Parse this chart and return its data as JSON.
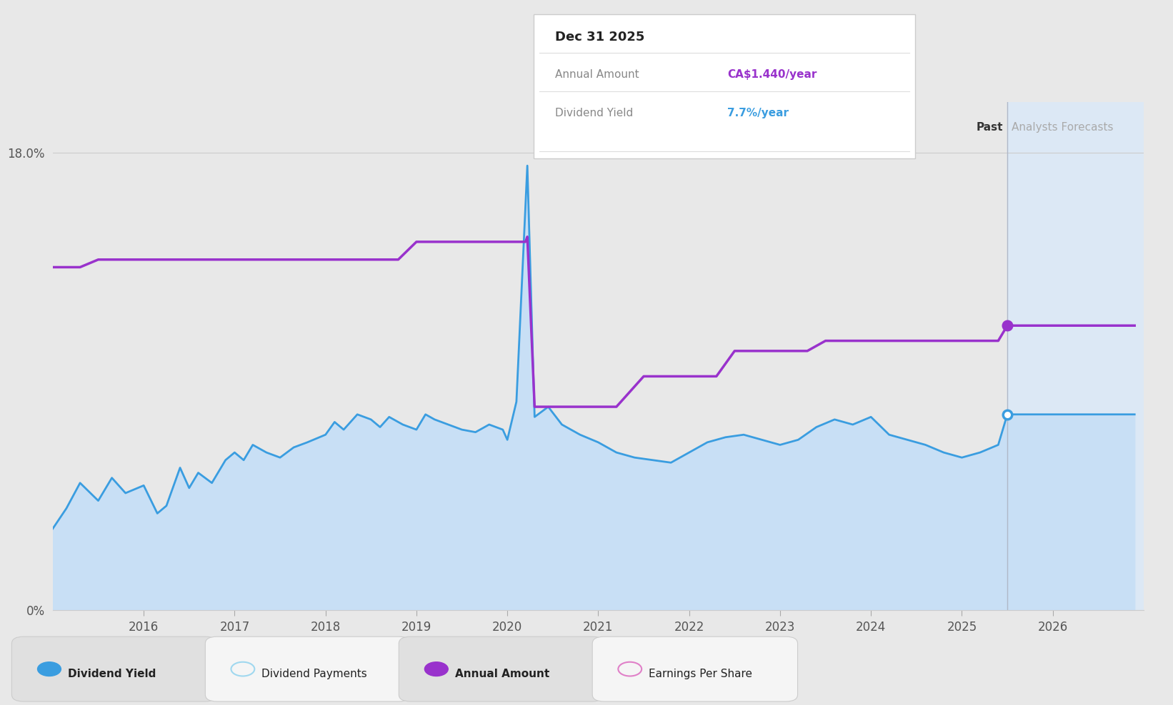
{
  "bg_color": "#e8e8e8",
  "plot_bg_color": "#e8e8e8",
  "forecast_bg_color": "#dce8f5",
  "area_fill_color": "#c8dff5",
  "dividend_yield_color": "#3a9de0",
  "annual_amount_color": "#9932cc",
  "dividend_payments_color": "#a0d8ef",
  "earnings_per_share_color": "#e0a0d8",
  "ylim": [
    0,
    20.0
  ],
  "xmin": 2015.0,
  "xmax": 2027.0,
  "forecast_start": 2025.5,
  "tooltip_date": "Dec 31 2025",
  "tooltip_annual_amount_label": "Annual Amount",
  "tooltip_annual_amount_value": "CA$1.440/year",
  "tooltip_yield_label": "Dividend Yield",
  "tooltip_yield_value": "7.7%/year",
  "legend_items": [
    {
      "label": "Dividend Yield",
      "color": "#3a9de0",
      "filled": true,
      "bold": true
    },
    {
      "label": "Dividend Payments",
      "color": "#a0d8ef",
      "filled": false,
      "bold": false
    },
    {
      "label": "Annual Amount",
      "color": "#9932cc",
      "filled": true,
      "bold": true
    },
    {
      "label": "Earnings Per Share",
      "color": "#e080c8",
      "filled": false,
      "bold": false
    }
  ],
  "dividend_yield_data": [
    [
      2015.0,
      3.2
    ],
    [
      2015.15,
      4.0
    ],
    [
      2015.3,
      5.0
    ],
    [
      2015.5,
      4.3
    ],
    [
      2015.65,
      5.2
    ],
    [
      2015.8,
      4.6
    ],
    [
      2016.0,
      4.9
    ],
    [
      2016.15,
      3.8
    ],
    [
      2016.25,
      4.1
    ],
    [
      2016.4,
      5.6
    ],
    [
      2016.5,
      4.8
    ],
    [
      2016.6,
      5.4
    ],
    [
      2016.75,
      5.0
    ],
    [
      2016.9,
      5.9
    ],
    [
      2017.0,
      6.2
    ],
    [
      2017.1,
      5.9
    ],
    [
      2017.2,
      6.5
    ],
    [
      2017.35,
      6.2
    ],
    [
      2017.5,
      6.0
    ],
    [
      2017.65,
      6.4
    ],
    [
      2017.8,
      6.6
    ],
    [
      2018.0,
      6.9
    ],
    [
      2018.1,
      7.4
    ],
    [
      2018.2,
      7.1
    ],
    [
      2018.35,
      7.7
    ],
    [
      2018.5,
      7.5
    ],
    [
      2018.6,
      7.2
    ],
    [
      2018.7,
      7.6
    ],
    [
      2018.85,
      7.3
    ],
    [
      2019.0,
      7.1
    ],
    [
      2019.1,
      7.7
    ],
    [
      2019.2,
      7.5
    ],
    [
      2019.35,
      7.3
    ],
    [
      2019.5,
      7.1
    ],
    [
      2019.65,
      7.0
    ],
    [
      2019.8,
      7.3
    ],
    [
      2019.95,
      7.1
    ],
    [
      2020.0,
      6.7
    ],
    [
      2020.1,
      8.2
    ],
    [
      2020.22,
      17.5
    ],
    [
      2020.3,
      7.6
    ],
    [
      2020.45,
      8.0
    ],
    [
      2020.6,
      7.3
    ],
    [
      2020.8,
      6.9
    ],
    [
      2021.0,
      6.6
    ],
    [
      2021.2,
      6.2
    ],
    [
      2021.4,
      6.0
    ],
    [
      2021.6,
      5.9
    ],
    [
      2021.8,
      5.8
    ],
    [
      2022.0,
      6.2
    ],
    [
      2022.2,
      6.6
    ],
    [
      2022.4,
      6.8
    ],
    [
      2022.6,
      6.9
    ],
    [
      2022.8,
      6.7
    ],
    [
      2023.0,
      6.5
    ],
    [
      2023.2,
      6.7
    ],
    [
      2023.4,
      7.2
    ],
    [
      2023.6,
      7.5
    ],
    [
      2023.8,
      7.3
    ],
    [
      2024.0,
      7.6
    ],
    [
      2024.2,
      6.9
    ],
    [
      2024.4,
      6.7
    ],
    [
      2024.6,
      6.5
    ],
    [
      2024.8,
      6.2
    ],
    [
      2025.0,
      6.0
    ],
    [
      2025.2,
      6.2
    ],
    [
      2025.4,
      6.5
    ],
    [
      2025.5,
      7.7
    ],
    [
      2025.7,
      7.7
    ],
    [
      2026.0,
      7.7
    ],
    [
      2026.5,
      7.7
    ],
    [
      2026.9,
      7.7
    ]
  ],
  "annual_amount_data": [
    [
      2015.0,
      13.5
    ],
    [
      2015.3,
      13.5
    ],
    [
      2015.5,
      13.8
    ],
    [
      2018.8,
      13.8
    ],
    [
      2019.0,
      14.5
    ],
    [
      2020.0,
      14.5
    ],
    [
      2020.2,
      14.5
    ],
    [
      2020.22,
      14.7
    ],
    [
      2020.3,
      8.0
    ],
    [
      2020.45,
      8.0
    ],
    [
      2021.0,
      8.0
    ],
    [
      2021.2,
      8.0
    ],
    [
      2021.5,
      9.2
    ],
    [
      2022.0,
      9.2
    ],
    [
      2022.3,
      9.2
    ],
    [
      2022.5,
      10.2
    ],
    [
      2022.6,
      10.2
    ],
    [
      2023.0,
      10.2
    ],
    [
      2023.3,
      10.2
    ],
    [
      2023.5,
      10.6
    ],
    [
      2024.0,
      10.6
    ],
    [
      2024.5,
      10.6
    ],
    [
      2025.0,
      10.6
    ],
    [
      2025.4,
      10.6
    ],
    [
      2025.5,
      11.2
    ],
    [
      2025.7,
      11.2
    ],
    [
      2026.0,
      11.2
    ],
    [
      2026.9,
      11.2
    ]
  ]
}
